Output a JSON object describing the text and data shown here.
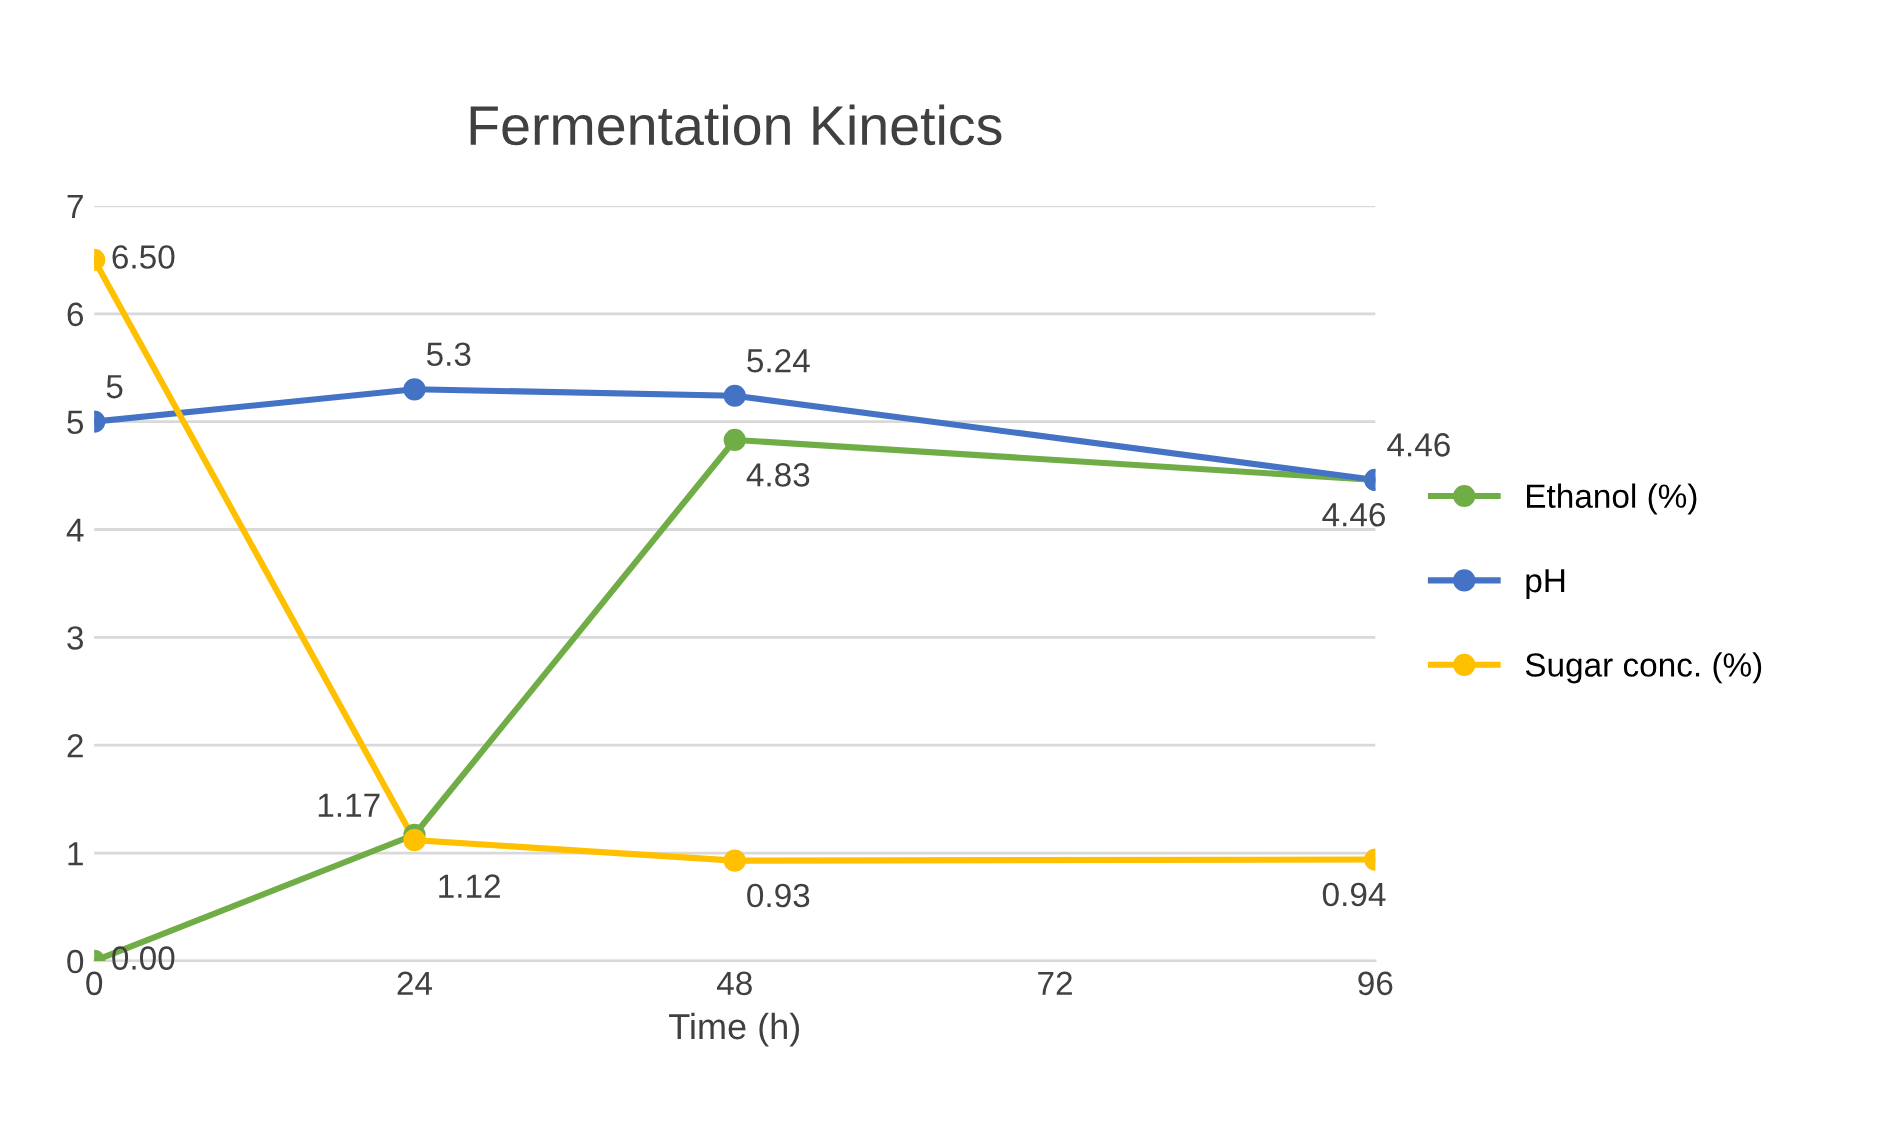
{
  "chart_data": {
    "type": "line",
    "title": "Fermentation Kinetics",
    "xlabel": "Time (h)",
    "x": [
      0,
      24,
      48,
      96
    ],
    "series": [
      {
        "name": "Ethanol (%)",
        "color": "#70ad47",
        "values": [
          0.0,
          1.17,
          4.83,
          4.46
        ],
        "value_labels": [
          "0.00",
          "1.17",
          "4.83",
          "4.46"
        ]
      },
      {
        "name": "pH",
        "color": "#4472c4",
        "values": [
          5,
          5.3,
          5.24,
          4.46
        ],
        "value_labels": [
          "5",
          "5.3",
          "5.24",
          "4.46"
        ]
      },
      {
        "name": "Sugar conc. (%)",
        "color": "#ffc000",
        "values": [
          6.5,
          1.12,
          0.93,
          0.94
        ],
        "value_labels": [
          "6.50",
          "1.12",
          "0.93",
          "0.94"
        ]
      }
    ],
    "xlim": [
      0,
      96
    ],
    "xticks": [
      0,
      24,
      48,
      72,
      96
    ],
    "ylim": [
      0,
      7
    ],
    "yticks": [
      0,
      1,
      2,
      3,
      4,
      5,
      6,
      7
    ],
    "grid": "y",
    "legend": "right",
    "marker": "circle",
    "line_style": "solid"
  }
}
